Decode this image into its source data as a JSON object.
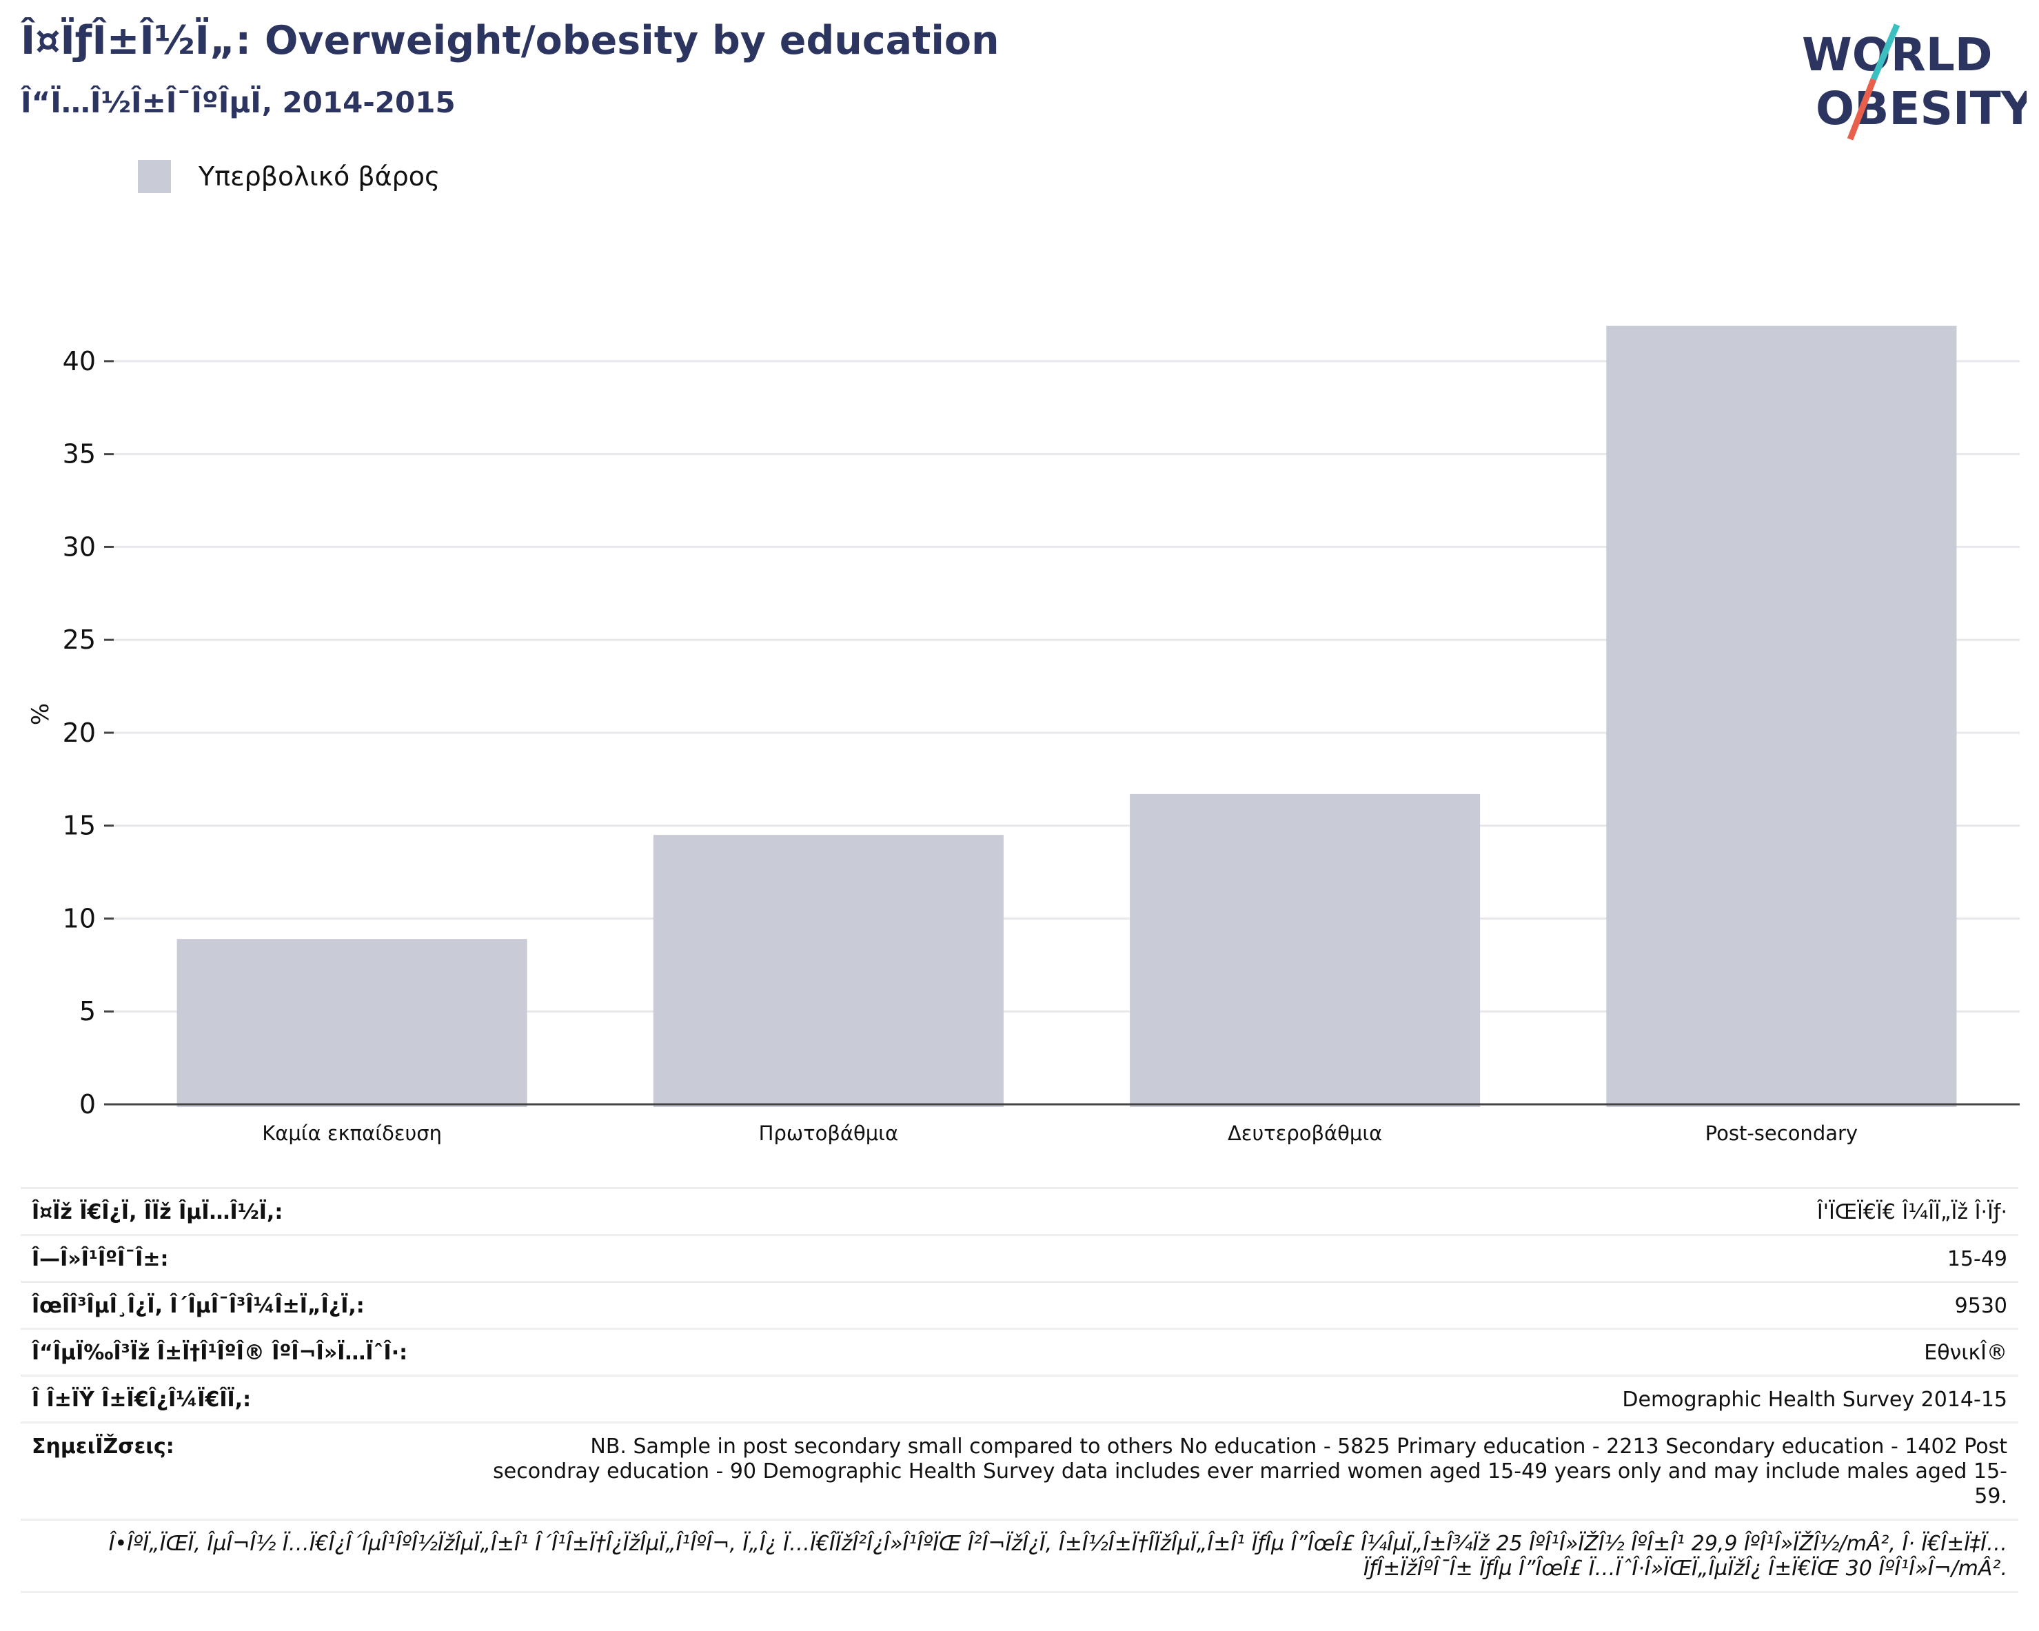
{
  "header": {
    "title": "Î¤ÏƒÎ±Î½Ï„: Overweight/obesity by education",
    "subtitle": "Î“Ï…Î½Î±Î¯ÎºÎµÏ‚ 2014-2015",
    "logo_text": "WORLD OBESITY"
  },
  "colors": {
    "title": "#2b3560",
    "bar": "#c9cbd6",
    "logo_teal": "#3bbfc0",
    "logo_red": "#e8604c"
  },
  "chart_data": {
    "type": "bar",
    "categories": [
      "Καμία εκπαίδευση",
      "Πρωτοβάθμια",
      "Δευτεροβάθμια",
      "Post-secondary"
    ],
    "series": [
      {
        "name": "Υπερβολικό βάρος",
        "values": [
          8.9,
          14.5,
          16.7,
          41.9
        ]
      }
    ],
    "ylabel": "%",
    "xlabel": "",
    "ylim": [
      0,
      42
    ],
    "yticks": [
      0,
      5,
      10,
      15,
      20,
      25,
      30,
      35,
      40
    ],
    "grid": true,
    "legend": "top-left"
  },
  "meta": {
    "rows": [
      {
        "label": "Î¤Ïž Ï€Î¿Ï, ÎÏž ÎµÏ…Î½Ï,:",
        "value": "Î'ÏŒÏ€Ï€ Î¼ÎÏ„Ïž Î·Ïƒ·"
      },
      {
        "label": "Î—Î»Î¹ÎºÎ¯Î±:",
        "value": "15-49"
      },
      {
        "label": "ÎœÎ­Î³ÎµÎ¸Î¿Ï, Î´ÎµÎ¯Î³Î¼Î±Ï„Î¿Ï,:",
        "value": "9530"
      },
      {
        "label": "Î“ÎµÏ‰Î³Ïž Î±Ï†Î¹ÎºÎ® ÎºÎ¬Î»Ï…ÏˆÎ·:",
        "value": "ΕθνικÎ®"
      },
      {
        "label": "Î Î±ÏŸ Î±Ï€Î¿Î¼Ï€ÎÏ,:",
        "value": "Demographic Health Survey 2014-15"
      }
    ],
    "notes_label": "ΣημειÏŽσεις:",
    "notes_value": "NB. Sample in post secondary small compared to others No education - 5825 Primary education - 2213 Secondary education - 1402 Post secondray education - 90 Demographic Health Survey data includes ever married women aged 15-49 years only and may include males aged 15-59.",
    "footer": "Î•ÎºÏ„ÏŒÏ, ÎµÎ¬Î½ Ï…Ï€Î¿Î´ÎµÎ¹ÎºÎ½ÏžÎµÏ„Î±Î¹ Î´Î¹Î±Ï†Î¿ÏžÎµÏ„Î¹ÎºÎ¬, Ï„Î¿ Ï…Ï€Î­ÏžÎ²Î¿Î»Î¹ÎºÏŒ Î²Î¬ÏžÎ¿Ï‚ Î±Î½Î±Ï†Î­ÏžÎµÏ„Î±Î¹ ÏƒÎµ Î”ÎœÎ£ Î¼ÎµÏ„Î±Î¾Ïž 25 ÎºÎ¹Î»ÏŽÎ½ ÎºÎ±Î¹ 29,9 ÎºÎ¹Î»ÏŽÎ½/mÂ², Î· Ï€Î±Ï‡Ï…ÏƒÎ±ÏžÎºÎ¯Î± ÏƒÎµ Î”ÎœÎ£ Ï…ÏˆÎ·Î»ÏŒÏ„ÎµÏžÎ¿ Î±Ï€ÏŒ 30 ÎºÎ¹Î»Î¬/mÂ²."
  }
}
